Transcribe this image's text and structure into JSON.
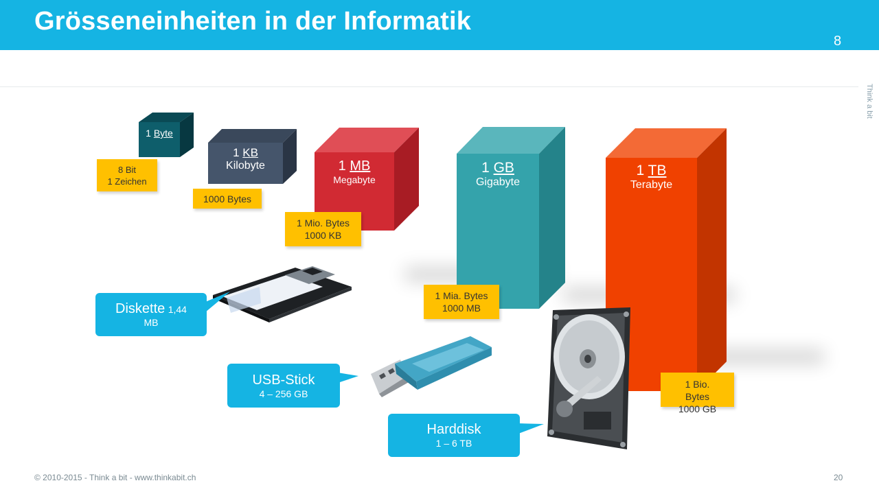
{
  "header": {
    "title": "Grösseneinheiten in der Informatik",
    "slide_number": "8"
  },
  "side_brand": "Think a bit",
  "units": [
    {
      "prefix": "1 ",
      "unit": "Byte",
      "name": "",
      "note": [
        "8 Bit",
        "1 Zeichen"
      ],
      "color": "#0e5e6b"
    },
    {
      "prefix": "1 ",
      "unit": "KB",
      "name": "Kilobyte",
      "note": [
        "1000 Bytes"
      ],
      "color": "#45556b"
    },
    {
      "prefix": "1 ",
      "unit": "MB",
      "name": "Megabyte",
      "note": [
        "1 Mio. Bytes",
        "1000 KB"
      ],
      "color": "#d12a33"
    },
    {
      "prefix": "1 ",
      "unit": "GB",
      "name": "Gigabyte",
      "note": [
        "1 Mia. Bytes",
        "1000 MB"
      ],
      "color": "#34a3ab"
    },
    {
      "prefix": "1 ",
      "unit": "TB",
      "name": "Terabyte",
      "note": [
        "1 Bio.",
        "Bytes",
        "1000 GB"
      ],
      "color": "#f04100"
    }
  ],
  "devices": [
    {
      "name": "Diskette",
      "capacity": "1,44",
      "capacity2": "MB",
      "icon": "floppy-disk-icon"
    },
    {
      "name": "USB-Stick",
      "capacity": "4 – 256 GB",
      "icon": "usb-stick-icon"
    },
    {
      "name": "Harddisk",
      "capacity": "1 – 6 TB",
      "icon": "harddisk-icon"
    }
  ],
  "footer": {
    "copyright": "© 2010-2015  - Think  a bit - www.thinkabit.ch",
    "page": "20"
  },
  "colors": {
    "accent": "#15b4e3",
    "note": "#ffc000"
  }
}
